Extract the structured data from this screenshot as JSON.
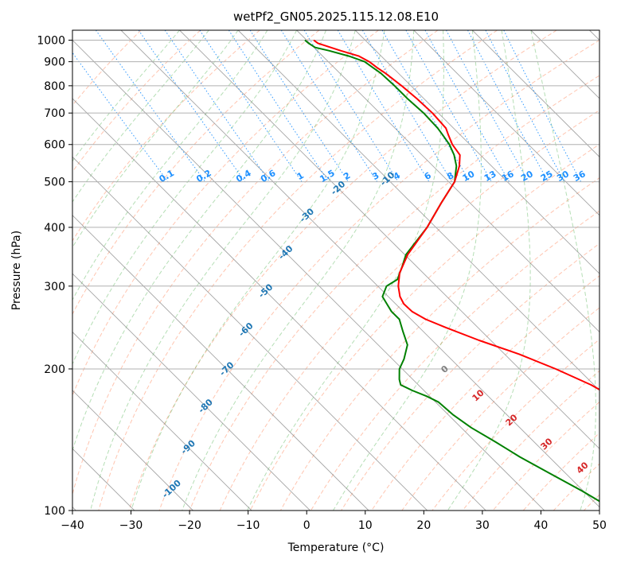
{
  "chart_data": {
    "type": "line",
    "subtype": "skew-t log-p sounding",
    "title": "wetPf2_GN05.2025.115.12.08.E10",
    "xlabel": "Temperature (°C)",
    "ylabel": "Pressure (hPa)",
    "xlim": [
      -40,
      50
    ],
    "ylim": [
      1050,
      100
    ],
    "grid": true,
    "x_ticks": [
      -40,
      -30,
      -20,
      -10,
      0,
      10,
      20,
      30,
      40,
      50
    ],
    "x_tick_labels": [
      "−40",
      "−30",
      "−20",
      "−10",
      "0",
      "10",
      "20",
      "30",
      "40",
      "50"
    ],
    "y_ticks": [
      1000,
      900,
      800,
      700,
      600,
      500,
      400,
      300,
      200,
      100
    ],
    "y_tick_labels": [
      "1000",
      "900",
      "800",
      "700",
      "600",
      "500",
      "400",
      "300",
      "200",
      "100"
    ],
    "colors": {
      "temperature": "#ff0000",
      "dewpoint": "#008000",
      "isotherm": "#808080",
      "dry_adiabat": "#ff7f50",
      "moist_adiabat": "#2ca02c",
      "mixing_ratio": "#1e90ff",
      "isotherm_label": "#1f77b4",
      "theta_label": "#d62728",
      "zero_label": "#808080",
      "grid": "#b0b0b0",
      "outer_curve": "#d2b48c"
    },
    "series": [
      {
        "name": "Temperature",
        "pressure": [
          1000,
          985,
          950,
          925,
          900,
          875,
          850,
          800,
          750,
          700,
          650,
          630,
          600,
          570,
          540,
          500,
          450,
          400,
          350,
          320,
          300,
          285,
          275,
          265,
          255,
          245,
          230,
          215,
          200,
          185,
          170,
          155,
          140,
          130,
          120,
          110,
          100
        ],
        "temperature": [
          1.2,
          1.4,
          4.0,
          6.2,
          7.0,
          7.3,
          7.8,
          8.4,
          8.8,
          9.0,
          8.7,
          8.0,
          7.0,
          6.5,
          4.5,
          1.0,
          -5.0,
          -11.5,
          -19.5,
          -24.0,
          -26.5,
          -28.0,
          -28.6,
          -28.5,
          -27.5,
          -25.5,
          -22.0,
          -17.5,
          -13.8,
          -10.5,
          -8.2,
          -6.8,
          -5.8,
          -5.4,
          -5.0,
          -5.2,
          -5.4
        ]
      },
      {
        "name": "Dewpoint",
        "pressure": [
          1000,
          985,
          965,
          950,
          925,
          900,
          875,
          850,
          800,
          750,
          700,
          650,
          630,
          600,
          570,
          540,
          500,
          450,
          400,
          350,
          330,
          310,
          300,
          285,
          275,
          265,
          255,
          240,
          225,
          210,
          200,
          190,
          185,
          180,
          175,
          170,
          160,
          150,
          140,
          130,
          120,
          110,
          100
        ],
        "dewpoint": [
          -0.3,
          -0.2,
          0.2,
          2.0,
          4.5,
          6.2,
          6.6,
          7.0,
          7.2,
          7.2,
          7.5,
          7.3,
          7.0,
          6.5,
          5.5,
          4.0,
          1.0,
          -5.0,
          -11.5,
          -19.8,
          -22.5,
          -25.5,
          -28.5,
          -31.0,
          -31.5,
          -32.0,
          -32.0,
          -33.5,
          -35.0,
          -38.0,
          -40.5,
          -42.3,
          -43.0,
          -42.0,
          -40.5,
          -39.5,
          -39.2,
          -38.3,
          -36.6,
          -35.0,
          -32.7,
          -30.2,
          -27.9
        ]
      }
    ],
    "isotherm_labels": [
      "-100",
      "-90",
      "-80",
      "-70",
      "-60",
      "-50",
      "-40",
      "-30",
      "-20",
      "-10"
    ],
    "zero_isotherm_label": "0",
    "theta_labels": [
      "10",
      "20",
      "30",
      "40"
    ],
    "mixing_ratio_labels": [
      "0.1",
      "0.2",
      "0.4",
      "0.6",
      "1",
      "1.5",
      "2",
      "3",
      "4",
      "6",
      "8",
      "10",
      "13",
      "16",
      "20",
      "25",
      "30",
      "36"
    ],
    "mixing_ratio_values": [
      0.1,
      0.2,
      0.4,
      0.6,
      1,
      1.5,
      2,
      3,
      4,
      6,
      8,
      10,
      13,
      16,
      20,
      25,
      30,
      36
    ]
  }
}
